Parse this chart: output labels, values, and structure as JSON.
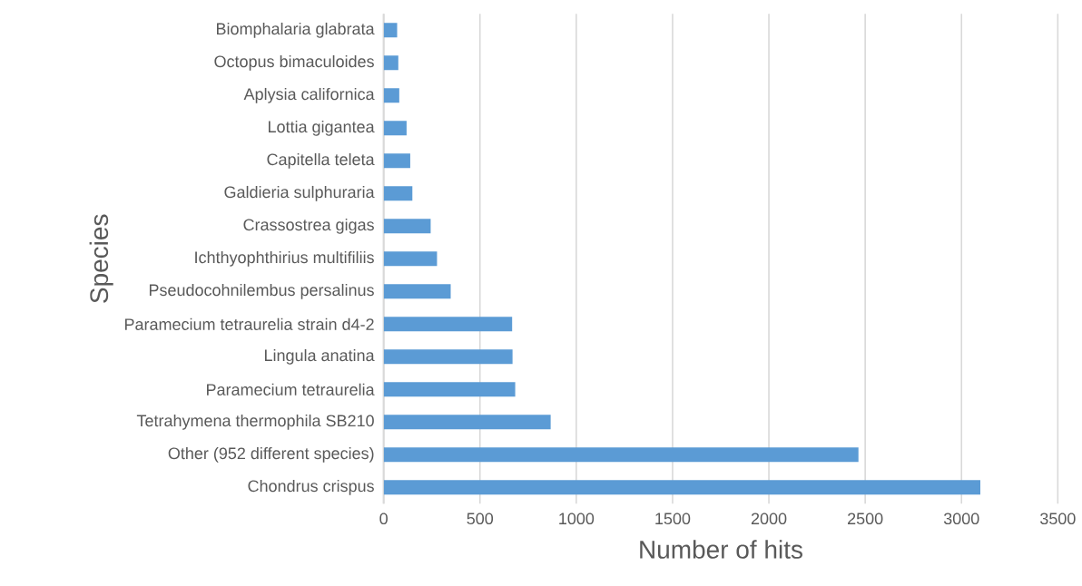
{
  "chart_data": {
    "type": "bar",
    "orientation": "horizontal",
    "xlabel": "Number of hits",
    "ylabel": "Species",
    "categories": [
      "Biomphalaria glabrata",
      "Octopus bimaculoides",
      "Aplysia californica",
      "Lottia gigantea",
      "Capitella teleta",
      "Galdieria sulphuraria",
      "Crassostrea gigas",
      "Ichthyophthirius multifiliis",
      "Pseudocohnilembus persalinus",
      "Paramecium tetraurelia strain d4-2",
      "Lingula anatina",
      "Paramecium tetraurelia",
      "Tetrahymena thermophila SB210",
      "Other (952 different species)",
      "Chondrus crispus"
    ],
    "values": [
      70,
      76,
      81,
      119,
      138,
      149,
      244,
      277,
      348,
      667,
      669,
      683,
      867,
      2465,
      3098
    ],
    "color": "#5b9bd5",
    "xlim": [
      0,
      3500
    ],
    "xticks": [
      0,
      500,
      1000,
      1500,
      2000,
      2500,
      3000,
      3500
    ],
    "grid": "x"
  }
}
